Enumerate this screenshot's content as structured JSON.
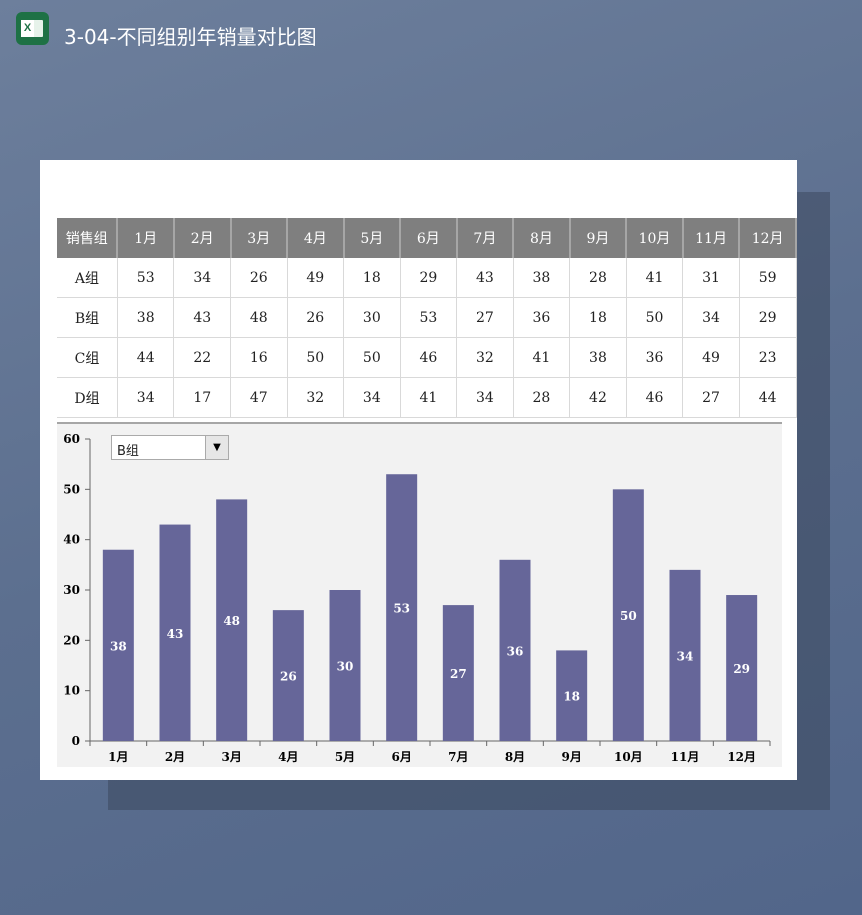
{
  "window": {
    "title": "3-04-不同组别年销量对比图",
    "icon": "excel-icon"
  },
  "table": {
    "headers": [
      "销售组",
      "1月",
      "2月",
      "3月",
      "4月",
      "5月",
      "6月",
      "7月",
      "8月",
      "9月",
      "10月",
      "11月",
      "12月"
    ],
    "rows": [
      {
        "group": "A组",
        "values": [
          53,
          34,
          26,
          49,
          18,
          29,
          43,
          38,
          28,
          41,
          31,
          59
        ]
      },
      {
        "group": "B组",
        "values": [
          38,
          43,
          48,
          26,
          30,
          53,
          27,
          36,
          18,
          50,
          34,
          29
        ]
      },
      {
        "group": "C组",
        "values": [
          44,
          22,
          16,
          50,
          50,
          46,
          32,
          41,
          38,
          36,
          49,
          23
        ]
      },
      {
        "group": "D组",
        "values": [
          34,
          17,
          47,
          32,
          34,
          41,
          34,
          28,
          42,
          46,
          27,
          44
        ]
      }
    ]
  },
  "selector": {
    "selected": "B组"
  },
  "chart_data": {
    "type": "bar",
    "categories": [
      "1月",
      "2月",
      "3月",
      "4月",
      "5月",
      "6月",
      "7月",
      "8月",
      "9月",
      "10月",
      "11月",
      "12月"
    ],
    "values": [
      38,
      43,
      48,
      26,
      30,
      53,
      27,
      36,
      18,
      50,
      34,
      29
    ],
    "ylim": [
      0,
      60
    ],
    "yticks": [
      0,
      10,
      20,
      30,
      40,
      50,
      60
    ],
    "grid": false,
    "bar_color": "#666699",
    "data_labels": true
  }
}
